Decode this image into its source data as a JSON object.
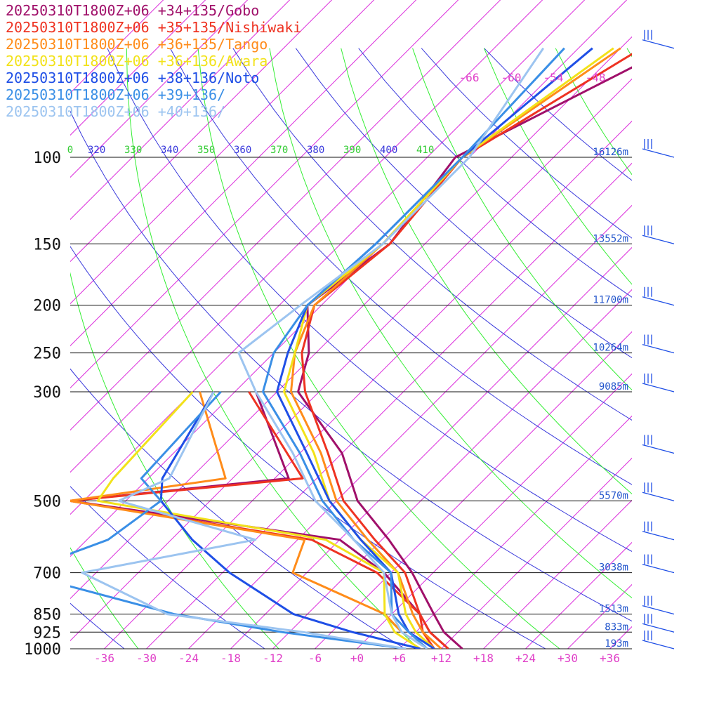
{
  "chart_data": {
    "type": "skew-t",
    "legend": [
      {
        "text": "20250310T1800Z+06 +34+135/Gobo",
        "color": "#a0106a"
      },
      {
        "text": "20250310T1800Z+06 +35+135/Nishiwaki",
        "color": "#ee3322"
      },
      {
        "text": "20250310T1800Z+06 +36+135/Tango",
        "color": "#ff8c1a"
      },
      {
        "text": "20250310T1800Z+06 +36+136/Awara",
        "color": "#f2e21a"
      },
      {
        "text": "20250310T1800Z+06 +38+136/Noto",
        "color": "#1f4fe6"
      },
      {
        "text": "20250310T1800Z+06 +39+136/",
        "color": "#3a8fe6"
      },
      {
        "text": "20250310T1800Z+06 +40+136/",
        "color": "#9cc4f0"
      }
    ],
    "pressure_levels": [
      "100",
      "150",
      "200",
      "250",
      "300",
      "500",
      "700",
      "850",
      "925",
      "1000"
    ],
    "height_labels": [
      "16126m",
      "13552m",
      "11700m",
      "10264m",
      "9085m",
      "5570m",
      "3038m",
      "1513m",
      "833m",
      "193m"
    ],
    "temperature_ticks": [
      "-36",
      "-30",
      "-24",
      "-18",
      "-12",
      "-6",
      "+0",
      "+6",
      "+12",
      "+18",
      "+24",
      "+30",
      "+36"
    ],
    "upper_temperature_ticks": [
      "-66",
      "-60",
      "-54",
      "-48"
    ],
    "theta_labels": [
      "0",
      "320",
      "330",
      "340",
      "350",
      "360",
      "370",
      "380",
      "390",
      "400",
      "410"
    ],
    "temperature_profiles": [
      {
        "name": "Gobo",
        "points": [
          [
            60,
            -41
          ],
          [
            100,
            -56
          ],
          [
            150,
            -53
          ],
          [
            200,
            -56
          ],
          [
            250,
            -49
          ],
          [
            300,
            -45
          ],
          [
            400,
            -30
          ],
          [
            500,
            -21
          ],
          [
            600,
            -11
          ],
          [
            700,
            -3
          ],
          [
            850,
            6
          ],
          [
            925,
            10
          ],
          [
            1000,
            15
          ]
        ]
      },
      {
        "name": "Nishiwaki",
        "points": [
          [
            60,
            -45
          ],
          [
            100,
            -55
          ],
          [
            150,
            -53
          ],
          [
            200,
            -55
          ],
          [
            250,
            -50
          ],
          [
            300,
            -44
          ],
          [
            400,
            -32
          ],
          [
            500,
            -23
          ],
          [
            600,
            -13
          ],
          [
            700,
            -4
          ],
          [
            850,
            4
          ],
          [
            925,
            8
          ],
          [
            1000,
            13
          ]
        ]
      },
      {
        "name": "Tango",
        "points": [
          [
            60,
            -48
          ],
          [
            100,
            -55
          ],
          [
            150,
            -54
          ],
          [
            200,
            -55
          ],
          [
            250,
            -51
          ],
          [
            300,
            -46
          ],
          [
            400,
            -33
          ],
          [
            500,
            -24
          ],
          [
            600,
            -14
          ],
          [
            700,
            -5
          ],
          [
            850,
            3
          ],
          [
            925,
            7
          ],
          [
            1000,
            12
          ]
        ]
      },
      {
        "name": "Awara",
        "points": [
          [
            60,
            -49
          ],
          [
            100,
            -55
          ],
          [
            150,
            -54
          ],
          [
            200,
            -56
          ],
          [
            250,
            -51
          ],
          [
            300,
            -47
          ],
          [
            400,
            -34
          ],
          [
            500,
            -25
          ],
          [
            600,
            -15
          ],
          [
            700,
            -5
          ],
          [
            850,
            2
          ],
          [
            925,
            6
          ],
          [
            1000,
            11
          ]
        ]
      },
      {
        "name": "Noto",
        "points": [
          [
            60,
            -52
          ],
          [
            100,
            -55
          ],
          [
            150,
            -55
          ],
          [
            200,
            -56
          ],
          [
            250,
            -52
          ],
          [
            300,
            -48
          ],
          [
            400,
            -35
          ],
          [
            500,
            -25
          ],
          [
            600,
            -15
          ],
          [
            700,
            -6
          ],
          [
            850,
            1
          ],
          [
            925,
            5
          ],
          [
            1000,
            11
          ]
        ]
      },
      {
        "name": "+39+136",
        "points": [
          [
            60,
            -56
          ],
          [
            100,
            -55
          ],
          [
            150,
            -55
          ],
          [
            200,
            -56
          ],
          [
            250,
            -54
          ],
          [
            300,
            -50
          ],
          [
            400,
            -36
          ],
          [
            500,
            -26
          ],
          [
            600,
            -16
          ],
          [
            700,
            -6
          ],
          [
            850,
            0
          ],
          [
            925,
            5
          ],
          [
            1000,
            10
          ]
        ]
      },
      {
        "name": "+40+136",
        "points": [
          [
            60,
            -59
          ],
          [
            100,
            -54
          ],
          [
            150,
            -54
          ],
          [
            200,
            -57
          ],
          [
            250,
            -59
          ],
          [
            300,
            -51
          ],
          [
            400,
            -37
          ],
          [
            500,
            -27
          ],
          [
            600,
            -16
          ],
          [
            700,
            -7
          ],
          [
            850,
            0
          ],
          [
            925,
            4
          ],
          [
            1000,
            10
          ]
        ]
      }
    ],
    "dewpoint_profiles": [
      {
        "name": "Gobo",
        "points": [
          [
            300,
            -51
          ],
          [
            450,
            -34
          ],
          [
            500,
            -62
          ],
          [
            600,
            -18
          ],
          [
            700,
            -7
          ],
          [
            850,
            4
          ],
          [
            925,
            8
          ],
          [
            1000,
            13
          ]
        ]
      },
      {
        "name": "Nishiwaki",
        "points": [
          [
            300,
            -52
          ],
          [
            450,
            -32
          ],
          [
            500,
            -62
          ],
          [
            600,
            -22
          ],
          [
            700,
            -8
          ],
          [
            850,
            4
          ],
          [
            925,
            7
          ],
          [
            1000,
            11
          ]
        ]
      },
      {
        "name": "Tango",
        "points": [
          [
            300,
            -59
          ],
          [
            450,
            -43
          ],
          [
            500,
            -62
          ],
          [
            600,
            -23
          ],
          [
            700,
            -20
          ],
          [
            850,
            -1
          ],
          [
            925,
            4
          ],
          [
            1000,
            10
          ]
        ]
      },
      {
        "name": "Awara",
        "points": [
          [
            300,
            -60
          ],
          [
            450,
            -59
          ],
          [
            500,
            -58
          ],
          [
            600,
            -20
          ],
          [
            700,
            -7
          ],
          [
            850,
            -1
          ],
          [
            925,
            3
          ],
          [
            1000,
            9
          ]
        ]
      },
      {
        "name": "Noto",
        "points": [
          [
            300,
            -57
          ],
          [
            450,
            -52
          ],
          [
            500,
            -49
          ],
          [
            600,
            -39
          ],
          [
            700,
            -29
          ],
          [
            850,
            -14
          ],
          [
            925,
            -3
          ],
          [
            1000,
            9
          ]
        ]
      },
      {
        "name": "+39+136",
        "points": [
          [
            300,
            -56
          ],
          [
            450,
            -55
          ],
          [
            500,
            -49
          ],
          [
            600,
            -51
          ],
          [
            700,
            -59
          ],
          [
            850,
            -31
          ],
          [
            925,
            -13
          ],
          [
            1000,
            7
          ]
        ]
      },
      {
        "name": "+40+136",
        "points": [
          [
            300,
            -57
          ],
          [
            450,
            -51
          ],
          [
            500,
            -55
          ],
          [
            600,
            -30
          ],
          [
            700,
            -50
          ],
          [
            850,
            -32
          ],
          [
            925,
            -10
          ],
          [
            1000,
            7
          ]
        ]
      }
    ]
  }
}
